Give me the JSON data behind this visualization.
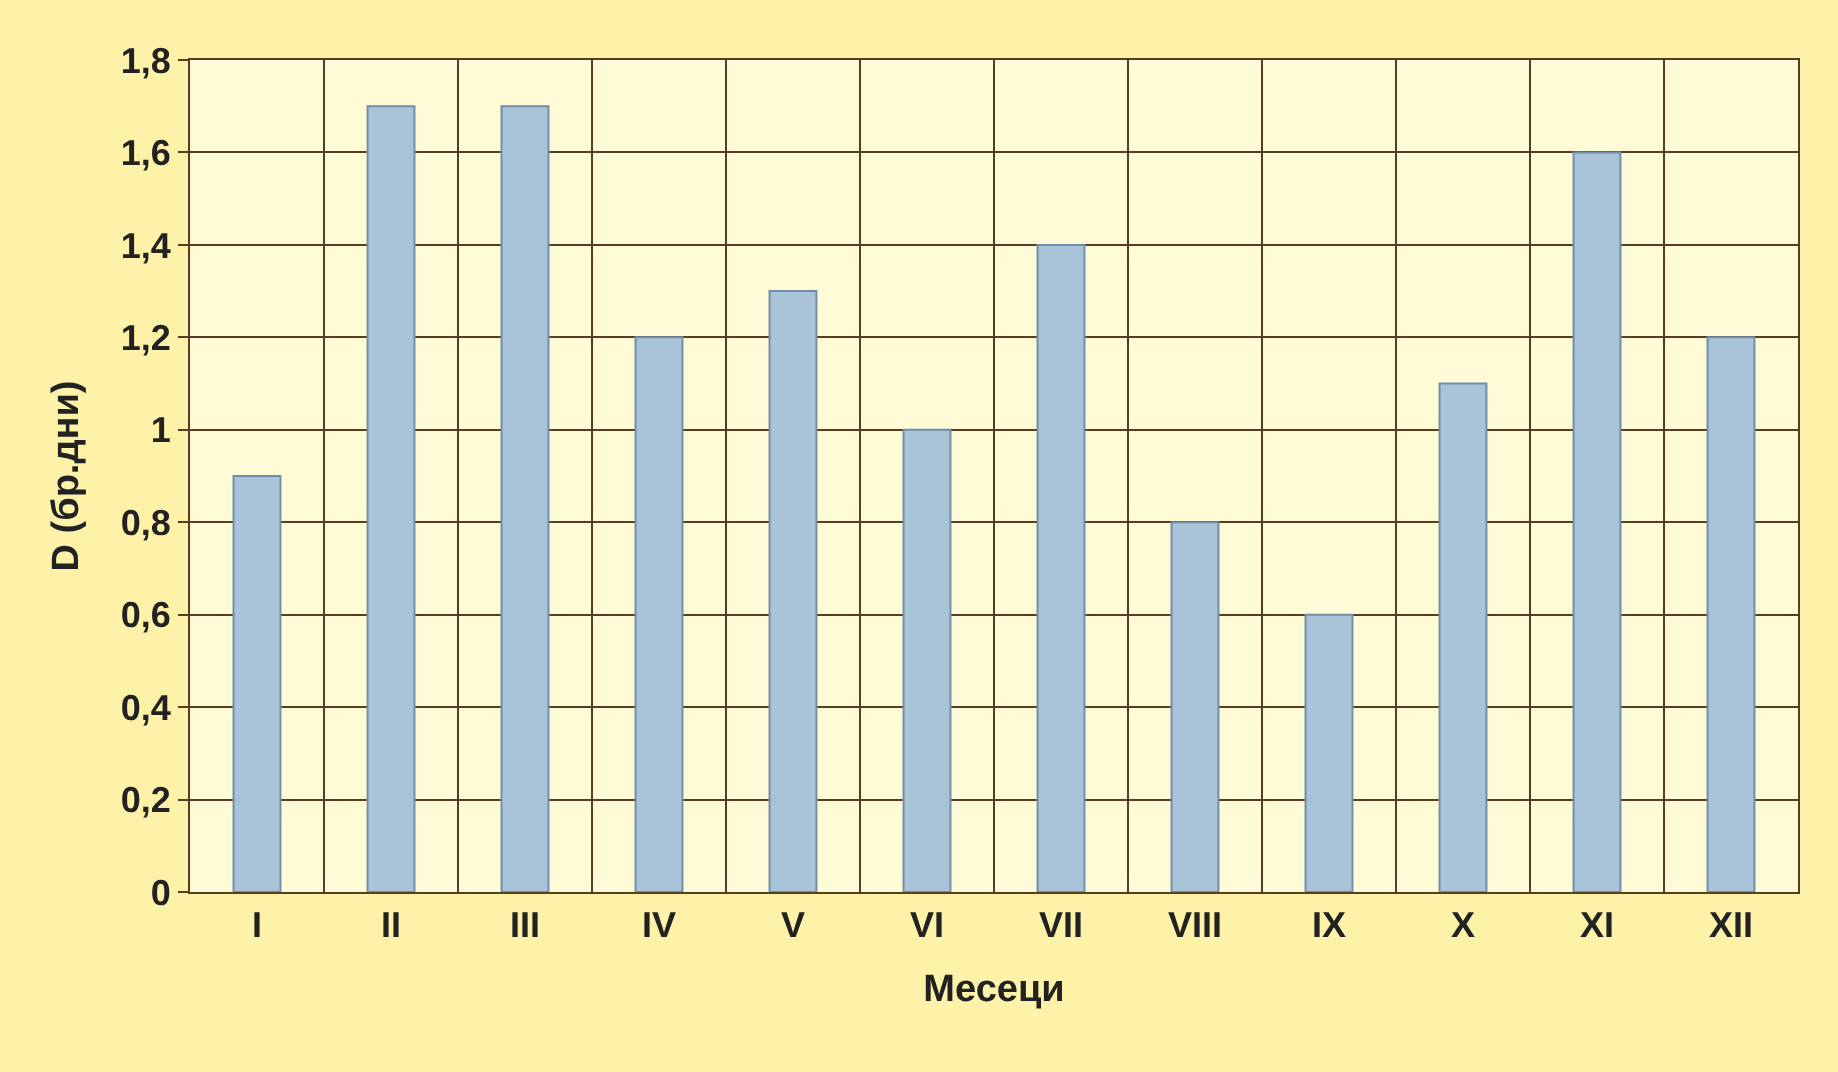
{
  "chart_data": {
    "type": "bar",
    "xlabel": "Месеци",
    "ylabel": "D (бр.дни)",
    "categories": [
      "I",
      "II",
      "III",
      "IV",
      "V",
      "VI",
      "VII",
      "VIII",
      "IX",
      "X",
      "XI",
      "XII"
    ],
    "values": [
      0.9,
      1.7,
      1.7,
      1.2,
      1.3,
      1.0,
      1.4,
      0.8,
      0.6,
      1.1,
      1.6,
      1.2
    ],
    "color": "#a9c4d8",
    "ylim": [
      0,
      1.8
    ],
    "yticks": [
      0,
      {
        "value": 0.2,
        "label": "0,2"
      },
      {
        "value": 0.4,
        "label": "0,4"
      },
      {
        "value": 0.6,
        "label": "0,6"
      },
      {
        "value": 0.8,
        "label": "0,8"
      },
      1,
      {
        "value": 1.2,
        "label": "1,2"
      },
      {
        "value": 1.4,
        "label": "1,4"
      },
      {
        "value": 1.6,
        "label": "1,6"
      },
      {
        "value": 1.8,
        "label": "1,8"
      }
    ],
    "grid": true
  }
}
